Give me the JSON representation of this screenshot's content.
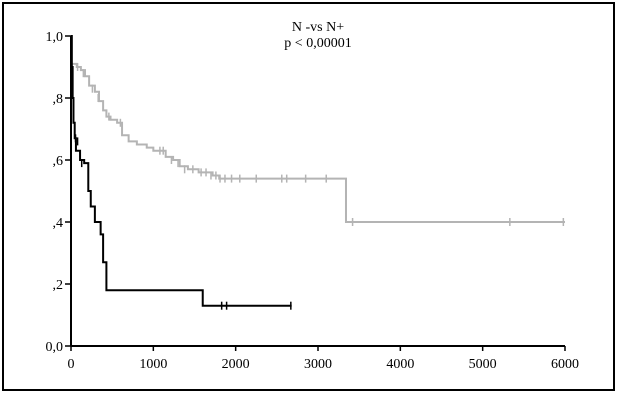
{
  "chart_data": {
    "type": "line",
    "subtype": "kaplan-meier",
    "annotations": [
      "N -vs N+",
      "p <  0,00001"
    ],
    "xlabel": "",
    "ylabel": "",
    "xlim": [
      0,
      6000
    ],
    "ylim": [
      0,
      1.0
    ],
    "x_ticks": [
      0,
      1000,
      2000,
      3000,
      4000,
      5000,
      6000
    ],
    "x_tick_labels": [
      "0",
      "1000",
      "2000",
      "3000",
      "4000",
      "5000",
      "6000"
    ],
    "y_ticks": [
      0,
      0.2,
      0.4,
      0.6,
      0.8,
      1.0
    ],
    "y_tick_labels": [
      "0,0",
      ",2",
      ",4",
      ",6",
      ",8",
      "1,0"
    ],
    "grid": false,
    "legend": "none",
    "series": [
      {
        "color": "#b4b4b4",
        "steps": [
          [
            0,
            0.91
          ],
          [
            70,
            0.9
          ],
          [
            120,
            0.89
          ],
          [
            170,
            0.87
          ],
          [
            220,
            0.84
          ],
          [
            290,
            0.82
          ],
          [
            340,
            0.79
          ],
          [
            390,
            0.76
          ],
          [
            430,
            0.74
          ],
          [
            480,
            0.73
          ],
          [
            560,
            0.72
          ],
          [
            620,
            0.68
          ],
          [
            700,
            0.66
          ],
          [
            800,
            0.65
          ],
          [
            920,
            0.64
          ],
          [
            1000,
            0.63
          ],
          [
            1060,
            0.63
          ],
          [
            1150,
            0.61
          ],
          [
            1240,
            0.6
          ],
          [
            1320,
            0.58
          ],
          [
            1420,
            0.57
          ],
          [
            1550,
            0.56
          ],
          [
            1720,
            0.55
          ],
          [
            1800,
            0.54
          ],
          [
            3340,
            0.4
          ],
          [
            6000,
            0.4
          ]
        ],
        "censored": [
          [
            80,
            0.9
          ],
          [
            150,
            0.88
          ],
          [
            260,
            0.83
          ],
          [
            330,
            0.8
          ],
          [
            460,
            0.74
          ],
          [
            600,
            0.72
          ],
          [
            1080,
            0.63
          ],
          [
            1120,
            0.63
          ],
          [
            1220,
            0.6
          ],
          [
            1300,
            0.59
          ],
          [
            1380,
            0.57
          ],
          [
            1480,
            0.57
          ],
          [
            1580,
            0.56
          ],
          [
            1640,
            0.56
          ],
          [
            1700,
            0.55
          ],
          [
            1760,
            0.55
          ],
          [
            1810,
            0.54
          ],
          [
            1870,
            0.54
          ],
          [
            1950,
            0.54
          ],
          [
            2050,
            0.54
          ],
          [
            2250,
            0.54
          ],
          [
            2560,
            0.54
          ],
          [
            2620,
            0.54
          ],
          [
            2850,
            0.54
          ],
          [
            3100,
            0.54
          ],
          [
            3420,
            0.4
          ],
          [
            5330,
            0.4
          ],
          [
            5980,
            0.4
          ]
        ]
      },
      {
        "color": "#000000",
        "steps": [
          [
            0,
            1.0
          ],
          [
            10,
            0.9
          ],
          [
            20,
            0.8
          ],
          [
            30,
            0.72
          ],
          [
            45,
            0.67
          ],
          [
            60,
            0.63
          ],
          [
            110,
            0.6
          ],
          [
            160,
            0.59
          ],
          [
            210,
            0.5
          ],
          [
            240,
            0.45
          ],
          [
            290,
            0.4
          ],
          [
            360,
            0.36
          ],
          [
            390,
            0.27
          ],
          [
            430,
            0.18
          ],
          [
            1600,
            0.13
          ],
          [
            2680,
            0.13
          ]
        ],
        "censored": [
          [
            55,
            0.67
          ],
          [
            80,
            0.66
          ],
          [
            130,
            0.59
          ],
          [
            1830,
            0.13
          ],
          [
            1890,
            0.13
          ],
          [
            2670,
            0.13
          ]
        ]
      }
    ]
  }
}
